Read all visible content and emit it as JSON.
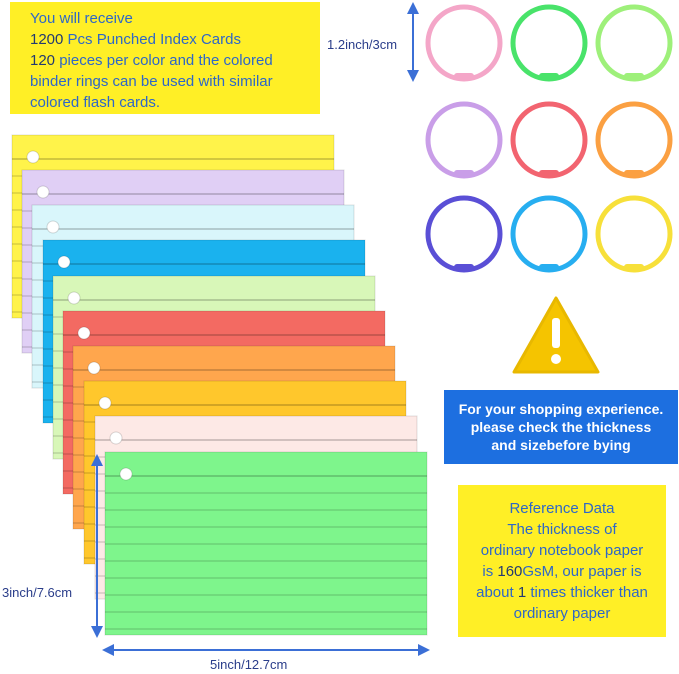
{
  "intro": {
    "line1": "You will receive",
    "line2_num": "1200",
    "line2_text": " Pcs Punched Index Cards",
    "line3_num": "120",
    "line3_text": " pieces per color and the colored",
    "line4": "binder rings can be used with similar",
    "line5": "colored flash cards."
  },
  "dimensions": {
    "ring_size": "1.2inch/3cm",
    "card_height": "3inch/7.6cm",
    "card_width": "5inch/12.7cm"
  },
  "shopping_note": {
    "line1": "For your shopping experience.",
    "line2": "please check the thickness",
    "line3": "and sizebefore bying"
  },
  "reference": {
    "line1": "Reference Data",
    "line2": "The thickness of",
    "line3": "ordinary notebook paper",
    "line4_a": "is ",
    "line4_num": "160",
    "line4_b": "GsM, our paper is",
    "line5_a": "about ",
    "line5_num": "1",
    "line5_b": " times thicker than",
    "line6": "ordinary paper"
  },
  "colors": {
    "yellow_box": "#ffef26",
    "text_blue": "#2e67c8",
    "note_blue": "#1d6fe0",
    "arrow_blue": "#3b6fd6",
    "warning_yellow": "#f5c400"
  },
  "rings": [
    "pink",
    "green",
    "light-green",
    "lavender",
    "red",
    "orange",
    "violet",
    "sky-blue",
    "yellow"
  ],
  "cards": [
    "yellow",
    "lavender",
    "light-blue",
    "blue",
    "light-green",
    "red",
    "orange",
    "gold",
    "light-pink",
    "green"
  ]
}
